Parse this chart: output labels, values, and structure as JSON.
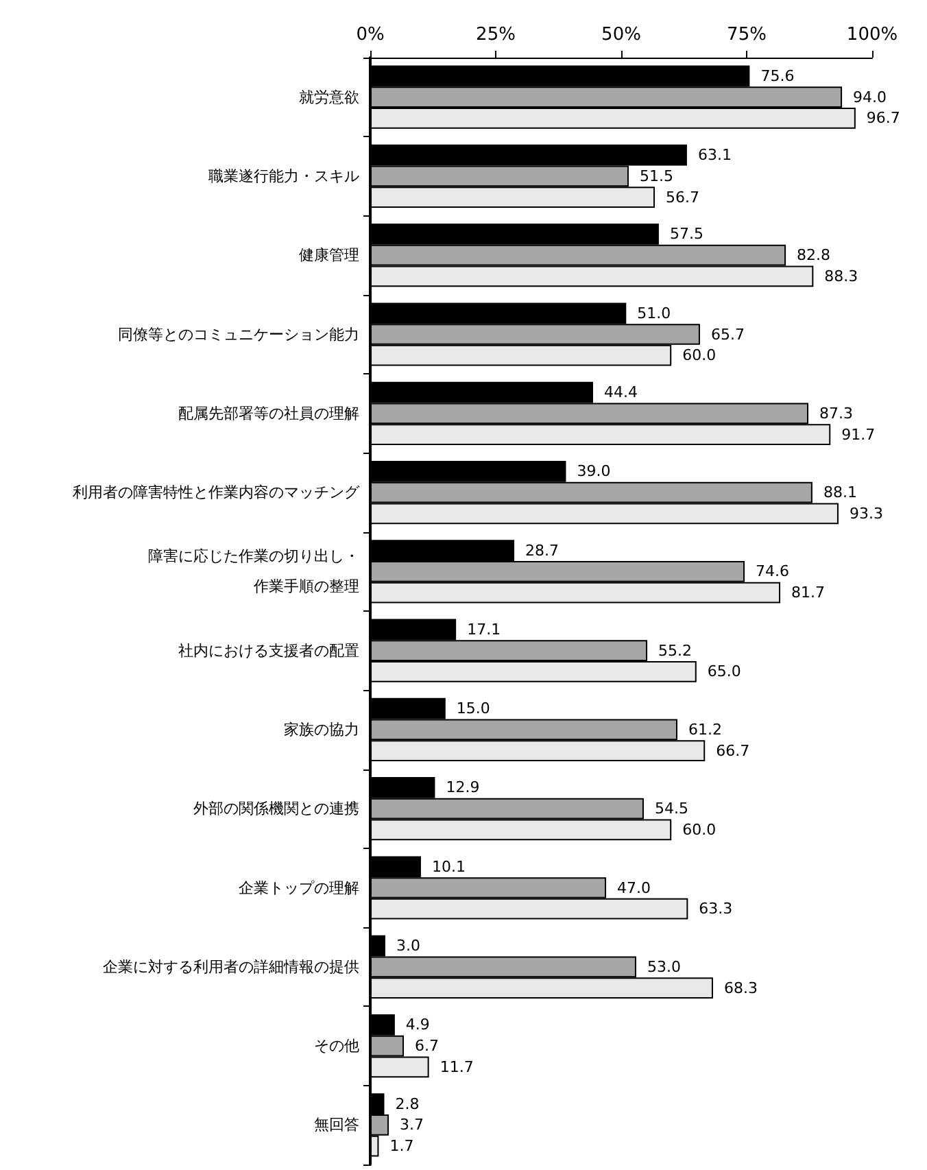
{
  "chart_data": {
    "type": "bar",
    "orientation": "horizontal",
    "categories": [
      "就労意欲",
      "職業遂行能力・スキル",
      "健康管理",
      "同僚等とのコミュニケーション能力",
      "配属先部署等の社員の理解",
      "利用者の障害特性と作業内容のマッチング",
      "障害に応じた作業の切り出し・作業手順の整理",
      "社内における支援者の配置",
      "家族の協力",
      "外部の関係機関との連携",
      "企業トップの理解",
      "企業に対する利用者の詳細情報の提供",
      "その他",
      "無回答"
    ],
    "series": [
      {
        "color": "#000000",
        "values": [
          75.6,
          63.1,
          57.5,
          51.0,
          44.4,
          39.0,
          28.7,
          17.1,
          15.0,
          12.9,
          10.1,
          3.0,
          4.9,
          2.8
        ],
        "value_labels": [
          "75.6",
          "63.1",
          "57.5",
          "51.0",
          "44.4",
          "39.0",
          "28.7",
          "17.1",
          "15.0",
          "12.9",
          "10.1",
          "3.0",
          "4.9",
          "2.8"
        ]
      },
      {
        "color": "#a6a6a6",
        "values": [
          94.0,
          51.5,
          82.8,
          65.7,
          87.3,
          88.1,
          74.6,
          55.2,
          61.2,
          54.5,
          47.0,
          53.0,
          6.7,
          3.7
        ],
        "value_labels": [
          "94.0",
          "51.5",
          "82.8",
          "65.7",
          "87.3",
          "88.1",
          "74.6",
          "55.2",
          "61.2",
          "54.5",
          "47.0",
          "53.0",
          "6.7",
          "3.7"
        ]
      },
      {
        "color": "#e8e8e8",
        "values": [
          96.7,
          56.7,
          88.3,
          60.0,
          91.7,
          93.3,
          81.7,
          65.0,
          66.7,
          60.0,
          63.3,
          68.3,
          11.7,
          1.7
        ],
        "value_labels": [
          "96.7",
          "56.7",
          "88.3",
          "60.0",
          "91.7",
          "93.3",
          "81.7",
          "65.0",
          "66.7",
          "60.0",
          "63.3",
          "68.3",
          "11.7",
          "1.7"
        ]
      }
    ],
    "xlim": [
      0,
      100
    ],
    "xticks": [
      {
        "value": 0,
        "label": "0%"
      },
      {
        "value": 25,
        "label": "25%"
      },
      {
        "value": 50,
        "label": "50%"
      },
      {
        "value": 75,
        "label": "75%"
      },
      {
        "value": 100,
        "label": "100%"
      }
    ],
    "grid": false
  }
}
